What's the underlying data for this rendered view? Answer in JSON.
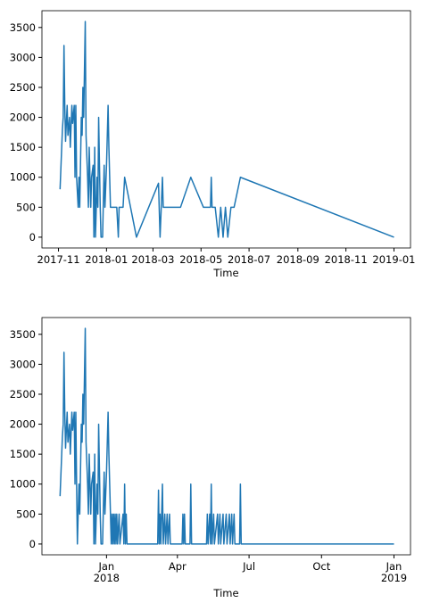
{
  "chart_data": [
    {
      "type": "line",
      "xlabel": "Time",
      "color": "#1f77b4",
      "x": [
        "2017-11-03",
        "2017-11-06",
        "2017-11-07",
        "2017-11-08",
        "2017-11-09",
        "2017-11-10",
        "2017-11-12",
        "2017-11-13",
        "2017-11-15",
        "2017-11-16",
        "2017-11-18",
        "2017-11-19",
        "2017-11-21",
        "2017-11-22",
        "2017-11-23",
        "2017-11-24",
        "2017-11-26",
        "2017-11-27",
        "2017-11-28",
        "2017-11-30",
        "2017-12-01",
        "2017-12-02",
        "2017-12-03",
        "2017-12-05",
        "2017-12-06",
        "2017-12-08",
        "2017-12-09",
        "2017-12-10",
        "2017-12-11",
        "2017-12-12",
        "2017-12-13",
        "2017-12-15",
        "2017-12-16",
        "2017-12-17",
        "2017-12-18",
        "2017-12-20",
        "2017-12-21",
        "2017-12-22",
        "2017-12-24",
        "2017-12-25",
        "2017-12-27",
        "2017-12-29",
        "2017-12-30",
        "2018-01-01",
        "2018-01-03",
        "2018-01-04",
        "2018-01-06",
        "2018-01-12",
        "2018-01-14",
        "2018-01-16",
        "2018-01-17",
        "2018-01-22",
        "2018-01-24",
        "2018-02-08",
        "2018-03-08",
        "2018-03-10",
        "2018-03-13",
        "2018-03-14",
        "2018-04-05",
        "2018-04-18",
        "2018-05-04",
        "2018-05-13",
        "2018-05-14",
        "2018-05-15",
        "2018-05-19",
        "2018-05-23",
        "2018-05-26",
        "2018-05-29",
        "2018-06-01",
        "2018-06-04",
        "2018-06-08",
        "2018-06-12",
        "2018-06-20",
        "2019-01-01"
      ],
      "values": [
        800,
        1800,
        2000,
        3200,
        2200,
        1600,
        2200,
        1700,
        2000,
        1500,
        2200,
        1900,
        2200,
        1000,
        2200,
        1000,
        500,
        1000,
        500,
        2000,
        1700,
        2500,
        2000,
        3600,
        1700,
        1000,
        500,
        1500,
        1000,
        500,
        1000,
        1200,
        0,
        1500,
        0,
        1000,
        500,
        2000,
        500,
        0,
        0,
        1200,
        500,
        1200,
        2200,
        1500,
        500,
        500,
        500,
        0,
        500,
        500,
        1000,
        0,
        900,
        0,
        1000,
        500,
        500,
        1000,
        500,
        500,
        1000,
        500,
        500,
        0,
        500,
        0,
        500,
        0,
        500,
        500,
        1000,
        0
      ],
      "xlim": [
        "2017-10-11",
        "2019-01-22"
      ],
      "xticks": [
        "2017-11",
        "2018-01",
        "2018-03",
        "2018-05",
        "2018-07",
        "2018-09",
        "2018-11",
        "2019-01"
      ],
      "ylim": [
        -180,
        3780
      ],
      "yticks": [
        0,
        500,
        1000,
        1500,
        2000,
        2500,
        3000,
        3500
      ]
    },
    {
      "type": "line",
      "xlabel": "Time",
      "color": "#1f77b4",
      "x": [
        "2017-11-03",
        "2017-11-06",
        "2017-11-07",
        "2017-11-08",
        "2017-11-09",
        "2017-11-10",
        "2017-11-12",
        "2017-11-13",
        "2017-11-15",
        "2017-11-16",
        "2017-11-18",
        "2017-11-19",
        "2017-11-21",
        "2017-11-22",
        "2017-11-23",
        "2017-11-24",
        "2017-11-25",
        "2017-11-26",
        "2017-11-27",
        "2017-11-28",
        "2017-11-30",
        "2017-12-01",
        "2017-12-02",
        "2017-12-03",
        "2017-12-05",
        "2017-12-06",
        "2017-12-08",
        "2017-12-09",
        "2017-12-10",
        "2017-12-11",
        "2017-12-12",
        "2017-12-13",
        "2017-12-15",
        "2017-12-16",
        "2017-12-17",
        "2017-12-18",
        "2017-12-20",
        "2017-12-21",
        "2017-12-22",
        "2017-12-24",
        "2017-12-25",
        "2017-12-27",
        "2017-12-29",
        "2017-12-30",
        "2018-01-01",
        "2018-01-03",
        "2018-01-04",
        "2018-01-06",
        "2018-01-07",
        "2018-01-08",
        "2018-01-09",
        "2018-01-10",
        "2018-01-11",
        "2018-01-12",
        "2018-01-13",
        "2018-01-14",
        "2018-01-15",
        "2018-01-17",
        "2018-01-18",
        "2018-01-22",
        "2018-01-23",
        "2018-01-24",
        "2018-01-25",
        "2018-01-26",
        "2018-01-27",
        "2018-03-07",
        "2018-03-08",
        "2018-03-09",
        "2018-03-10",
        "2018-03-11",
        "2018-03-13",
        "2018-03-14",
        "2018-03-16",
        "2018-03-17",
        "2018-03-19",
        "2018-03-20",
        "2018-03-22",
        "2018-03-23",
        "2018-04-07",
        "2018-04-08",
        "2018-04-09",
        "2018-04-10",
        "2018-04-11",
        "2018-04-17",
        "2018-04-18",
        "2018-04-19",
        "2018-05-08",
        "2018-05-09",
        "2018-05-10",
        "2018-05-12",
        "2018-05-13",
        "2018-05-14",
        "2018-05-15",
        "2018-05-17",
        "2018-05-18",
        "2018-05-22",
        "2018-05-23",
        "2018-05-25",
        "2018-05-26",
        "2018-05-29",
        "2018-05-30",
        "2018-06-02",
        "2018-06-03",
        "2018-06-06",
        "2018-06-07",
        "2018-06-09",
        "2018-06-10",
        "2018-06-12",
        "2018-06-13",
        "2018-06-19",
        "2018-06-20",
        "2018-06-21",
        "2019-01-01"
      ],
      "values": [
        800,
        1800,
        2000,
        3200,
        2200,
        1600,
        2200,
        1700,
        2000,
        1500,
        2200,
        1900,
        2200,
        1000,
        2200,
        1000,
        0,
        500,
        1000,
        500,
        2000,
        1700,
        2500,
        2000,
        3600,
        1700,
        1000,
        500,
        1500,
        1000,
        500,
        1000,
        1200,
        0,
        1500,
        0,
        1000,
        500,
        2000,
        500,
        0,
        0,
        1200,
        500,
        1200,
        2200,
        1500,
        500,
        0,
        500,
        0,
        500,
        0,
        500,
        0,
        500,
        0,
        500,
        0,
        500,
        0,
        1000,
        0,
        500,
        0,
        0,
        900,
        0,
        500,
        0,
        1000,
        0,
        500,
        0,
        500,
        0,
        500,
        0,
        0,
        500,
        0,
        500,
        0,
        0,
        1000,
        0,
        0,
        500,
        0,
        500,
        0,
        1000,
        0,
        500,
        0,
        500,
        0,
        500,
        0,
        500,
        0,
        500,
        0,
        500,
        0,
        500,
        0,
        500,
        0,
        0,
        1000,
        0,
        0
      ],
      "xlim": [
        "2017-10-11",
        "2019-01-22"
      ],
      "xticks": [
        {
          "value": "2018-01",
          "label": "Jan\n2018"
        },
        {
          "value": "2018-04",
          "label": "Apr"
        },
        {
          "value": "2018-07",
          "label": "Jul"
        },
        {
          "value": "2018-10",
          "label": "Oct"
        },
        {
          "value": "2019-01",
          "label": "Jan\n2019"
        }
      ],
      "ylim": [
        -180,
        3780
      ],
      "yticks": [
        0,
        500,
        1000,
        1500,
        2000,
        2500,
        3000,
        3500
      ]
    }
  ]
}
